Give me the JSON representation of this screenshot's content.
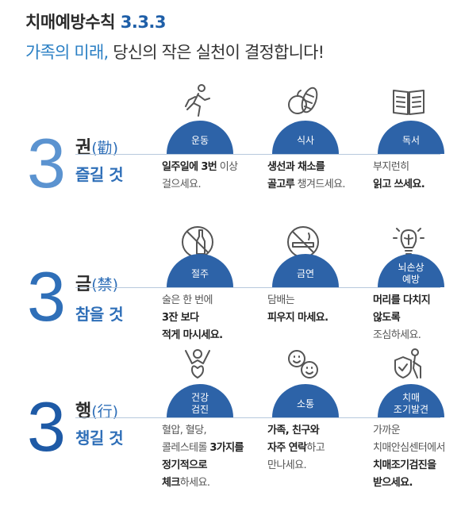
{
  "header": {
    "title_text": "치매예방수칙",
    "title_num": "3.3.3",
    "subtitle_accent": "가족의 미래,",
    "subtitle_rest": " 당신의 작은 실천이 결정합니다!"
  },
  "sections": [
    {
      "number": "3",
      "word": "권",
      "hanja": "(勸)",
      "motto": "즐길 것",
      "items": [
        {
          "icon": "running-person-icon",
          "label": "운동",
          "lines": [
            [
              [
                "b",
                "일주일에 3번"
              ],
              [
                "n",
                " 이상"
              ]
            ],
            [
              [
                "n",
                "걸으세요."
              ]
            ]
          ]
        },
        {
          "icon": "fruit-vegetable-icon",
          "label": "식사",
          "lines": [
            [
              [
                "b",
                "생선과 채소를"
              ]
            ],
            [
              [
                "b",
                "골고루"
              ],
              [
                "n",
                " 챙겨드세요."
              ]
            ]
          ]
        },
        {
          "icon": "open-book-icon",
          "label": "독서",
          "lines": [
            [
              [
                "n",
                "부지런히"
              ]
            ],
            [
              [
                "b",
                "읽고 쓰세요."
              ]
            ]
          ]
        }
      ]
    },
    {
      "number": "3",
      "word": "금",
      "hanja": "(禁)",
      "motto": "참을 것",
      "items": [
        {
          "icon": "no-alcohol-icon",
          "label": "절주",
          "lines": [
            [
              [
                "n",
                "술은 한 번에"
              ]
            ],
            [
              [
                "b",
                "3잔 보다"
              ]
            ],
            [
              [
                "b",
                "적게 마시세요."
              ]
            ]
          ]
        },
        {
          "icon": "no-smoking-icon",
          "label": "금연",
          "lines": [
            [
              [
                "n",
                "담배는"
              ]
            ],
            [
              [
                "b",
                "피우지 마세요."
              ]
            ]
          ]
        },
        {
          "icon": "brain-bulb-icon",
          "label": "뇌손상\n예방",
          "lines": [
            [
              [
                "b",
                "머리를 다치지"
              ]
            ],
            [
              [
                "b",
                "않도록"
              ]
            ],
            [
              [
                "n",
                "조심하세요."
              ]
            ]
          ]
        }
      ]
    },
    {
      "number": "3",
      "word": "행",
      "hanja": "(行)",
      "motto": "챙길 것",
      "items": [
        {
          "icon": "healthy-person-icon",
          "label": "건강\n검진",
          "lines": [
            [
              [
                "n",
                "혈압, 혈당,"
              ]
            ],
            [
              [
                "n",
                "콜레스테롤 "
              ],
              [
                "b",
                "3가지를"
              ]
            ],
            [
              [
                "b",
                "정기적으로"
              ]
            ],
            [
              [
                "b",
                "체크"
              ],
              [
                "n",
                "하세요."
              ]
            ]
          ]
        },
        {
          "icon": "smiley-faces-icon",
          "label": "소통",
          "lines": [
            [
              [
                "b",
                "가족, 친구와"
              ]
            ],
            [
              [
                "b",
                "자주 연락"
              ],
              [
                "n",
                "하고"
              ]
            ],
            [
              [
                "n",
                "만나세요."
              ]
            ]
          ]
        },
        {
          "icon": "elder-shield-icon",
          "label": "치매\n조기발견",
          "lines": [
            [
              [
                "n",
                "가까운"
              ]
            ],
            [
              [
                "n",
                "치매안심센터에서"
              ]
            ],
            [
              [
                "b",
                "치매조기검진을"
              ]
            ],
            [
              [
                "b",
                "받으세요."
              ]
            ]
          ]
        }
      ]
    }
  ]
}
